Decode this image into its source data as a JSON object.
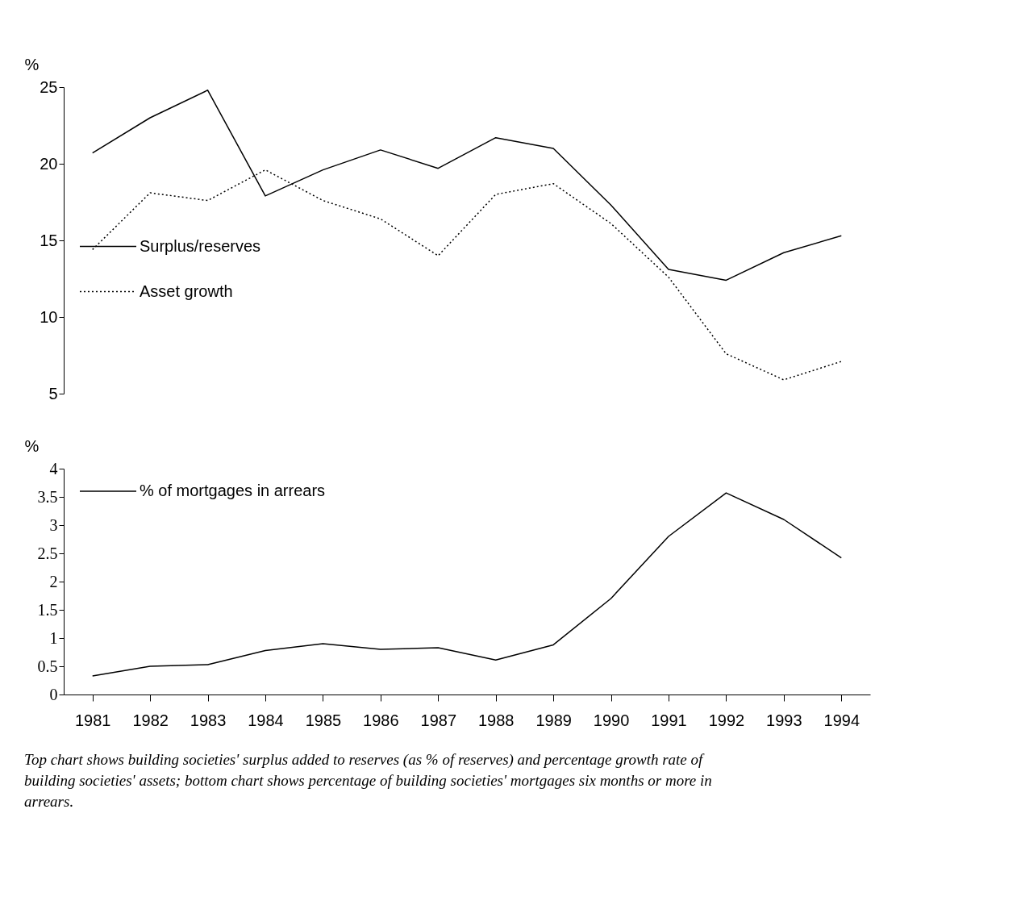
{
  "chart_data": [
    {
      "type": "line",
      "ylabel": "%",
      "categories": [
        "1981",
        "1982",
        "1983",
        "1984",
        "1985",
        "1986",
        "1987",
        "1988",
        "1989",
        "1990",
        "1991",
        "1992",
        "1993",
        "1994"
      ],
      "ylim": [
        5,
        25
      ],
      "yticks": [
        5,
        10,
        15,
        20,
        25
      ],
      "tick_labels": "y",
      "grid": false,
      "legend": "left",
      "marker": "none",
      "series": [
        {
          "name": "Surplus/reserves",
          "color": "#000000",
          "line_style": "solid",
          "values": [
            20.7,
            23.0,
            24.8,
            17.9,
            19.6,
            20.9,
            19.7,
            21.7,
            21.0,
            17.3,
            13.1,
            12.4,
            14.2,
            15.3
          ]
        },
        {
          "name": "Asset growth",
          "color": "#000000",
          "line_style": "dotted",
          "values": [
            14.4,
            18.1,
            17.6,
            19.6,
            17.6,
            16.4,
            14.0,
            18.0,
            18.7,
            16.1,
            12.6,
            7.6,
            5.9,
            7.1
          ]
        }
      ]
    },
    {
      "type": "line",
      "ylabel": "%",
      "categories": [
        "1981",
        "1982",
        "1983",
        "1984",
        "1985",
        "1986",
        "1987",
        "1988",
        "1989",
        "1990",
        "1991",
        "1992",
        "1993",
        "1994"
      ],
      "ylim": [
        0,
        4
      ],
      "yticks": [
        0,
        0.5,
        1,
        1.5,
        2,
        2.5,
        3,
        3.5,
        4
      ],
      "grid": false,
      "legend": "top left",
      "marker": "none",
      "series": [
        {
          "name": "% of mortgages in arrears",
          "color": "#000000",
          "line_style": "solid",
          "values": [
            0.33,
            0.5,
            0.53,
            0.78,
            0.9,
            0.8,
            0.83,
            0.61,
            0.88,
            1.7,
            2.8,
            3.57,
            3.1,
            2.42
          ]
        }
      ],
      "annotations": [
        "Top chart shows building societies' surplus added to reserves (as % of reserves) and percentage growth rate of building societies' assets; bottom chart shows percentage of building societies' mortgages six months or more in arrears."
      ]
    }
  ]
}
